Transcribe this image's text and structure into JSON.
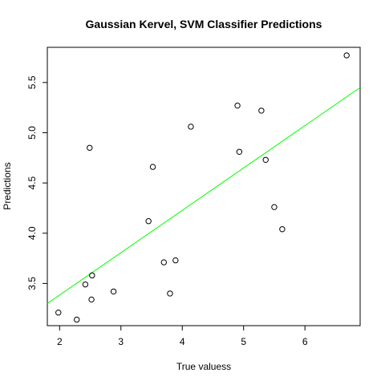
{
  "chart_data": {
    "type": "scatter",
    "title": "Gaussian Kervel, SVM Classifier Predictions",
    "xlabel": "True valuess",
    "ylabel": "Predictions",
    "xlim": [
      1.8,
      6.9
    ],
    "ylim": [
      3.08,
      5.85
    ],
    "x_ticks": [
      2,
      3,
      4,
      5,
      6
    ],
    "y_ticks": [
      3.5,
      4.0,
      4.5,
      5.0,
      5.5
    ],
    "x_tick_labels": [
      "2",
      "3",
      "4",
      "5",
      "6"
    ],
    "y_tick_labels": [
      "3.5",
      "4.0",
      "4.5",
      "5.0",
      "5.5"
    ],
    "grid": false,
    "points": [
      {
        "x": 1.98,
        "y": 3.21
      },
      {
        "x": 2.28,
        "y": 3.14
      },
      {
        "x": 2.42,
        "y": 3.49
      },
      {
        "x": 2.49,
        "y": 4.85
      },
      {
        "x": 2.52,
        "y": 3.34
      },
      {
        "x": 2.53,
        "y": 3.58
      },
      {
        "x": 2.88,
        "y": 3.42
      },
      {
        "x": 3.45,
        "y": 4.12
      },
      {
        "x": 3.52,
        "y": 4.66
      },
      {
        "x": 3.7,
        "y": 3.71
      },
      {
        "x": 3.8,
        "y": 3.4
      },
      {
        "x": 3.89,
        "y": 3.73
      },
      {
        "x": 4.14,
        "y": 5.06
      },
      {
        "x": 4.9,
        "y": 5.27
      },
      {
        "x": 4.93,
        "y": 4.81
      },
      {
        "x": 5.29,
        "y": 5.22
      },
      {
        "x": 5.36,
        "y": 4.73
      },
      {
        "x": 5.5,
        "y": 4.26
      },
      {
        "x": 5.63,
        "y": 4.04
      },
      {
        "x": 6.68,
        "y": 5.77
      }
    ],
    "fit_line": {
      "color": "#00ff00",
      "x": [
        1.8,
        6.9
      ],
      "y": [
        3.3,
        5.45
      ]
    },
    "point_color": "#000000"
  }
}
